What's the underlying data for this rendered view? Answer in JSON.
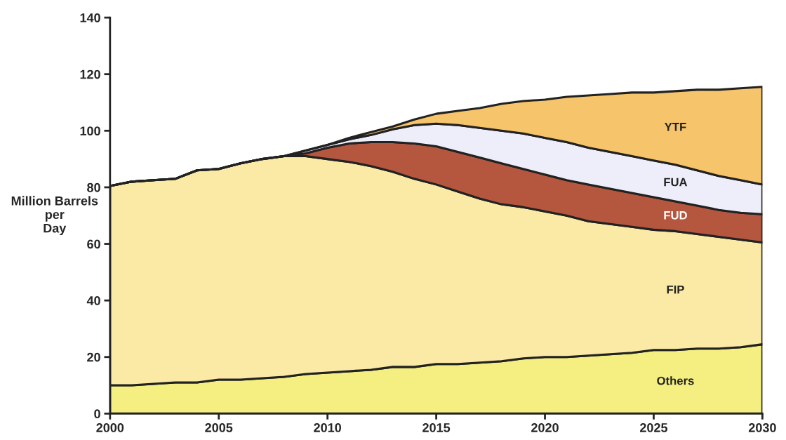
{
  "chart_data": {
    "type": "area",
    "stacked": true,
    "ylabel": "Million Barrels\nper\nDay",
    "x": [
      2000,
      2001,
      2002,
      2003,
      2004,
      2005,
      2006,
      2007,
      2008,
      2009,
      2010,
      2011,
      2012,
      2013,
      2014,
      2015,
      2016,
      2017,
      2018,
      2019,
      2020,
      2021,
      2022,
      2023,
      2024,
      2025,
      2026,
      2027,
      2028,
      2029,
      2030
    ],
    "series": [
      {
        "name": "Others",
        "color": "#f5ee80",
        "values": [
          10,
          10,
          10.5,
          11,
          11,
          12,
          12,
          12.5,
          13,
          14,
          14.5,
          15,
          15.5,
          16.5,
          16.5,
          17.5,
          17.5,
          18,
          18.5,
          19.5,
          20,
          20,
          20.5,
          21,
          21.5,
          22.5,
          22.5,
          23,
          23,
          23.5,
          24.5
        ]
      },
      {
        "name": "FIP",
        "color": "#fbeaa6",
        "values": [
          70.5,
          72,
          72,
          72,
          75,
          74.5,
          76.5,
          77.5,
          78,
          77,
          75.5,
          74,
          72,
          69,
          66.5,
          63.5,
          61,
          58,
          55.5,
          53.5,
          51.5,
          50,
          47.5,
          46,
          44.5,
          42.5,
          42,
          40.5,
          39.5,
          38,
          36
        ]
      },
      {
        "name": "FUD",
        "color": "#b5573f",
        "values": [
          0,
          0,
          0,
          0,
          0,
          0,
          0,
          0,
          0,
          1,
          4,
          6.5,
          8.5,
          10.5,
          12.5,
          13.5,
          14,
          14.5,
          14.5,
          13.5,
          13,
          12.5,
          13,
          12.5,
          12,
          11.5,
          10.5,
          10,
          9.5,
          9.5,
          10
        ]
      },
      {
        "name": "FUA",
        "color": "#eeeefa",
        "values": [
          0,
          0,
          0,
          0,
          0,
          0,
          0,
          0,
          0,
          1,
          1,
          1.5,
          2.5,
          4.5,
          6.5,
          8,
          9.5,
          10.5,
          11.5,
          12.5,
          13,
          13.5,
          13,
          13,
          13,
          13,
          13,
          12.5,
          12,
          11.5,
          10.5
        ]
      },
      {
        "name": "YTF",
        "color": "#f6c46a",
        "values": [
          0,
          0,
          0,
          0,
          0,
          0,
          0,
          0,
          0,
          0,
          0,
          0.5,
          1,
          1,
          2,
          3.5,
          5,
          7,
          9.5,
          11.5,
          13.5,
          16,
          18.5,
          20.5,
          22.5,
          24,
          26,
          28.5,
          30.5,
          32.5,
          34.5
        ]
      }
    ],
    "xlim": [
      2000,
      2030
    ],
    "ylim": [
      0,
      140
    ],
    "xticks": [
      2000,
      2005,
      2010,
      2015,
      2020,
      2025,
      2030
    ],
    "yticks": [
      0,
      20,
      40,
      60,
      80,
      100,
      120,
      140
    ],
    "grid": false,
    "legend": false
  }
}
